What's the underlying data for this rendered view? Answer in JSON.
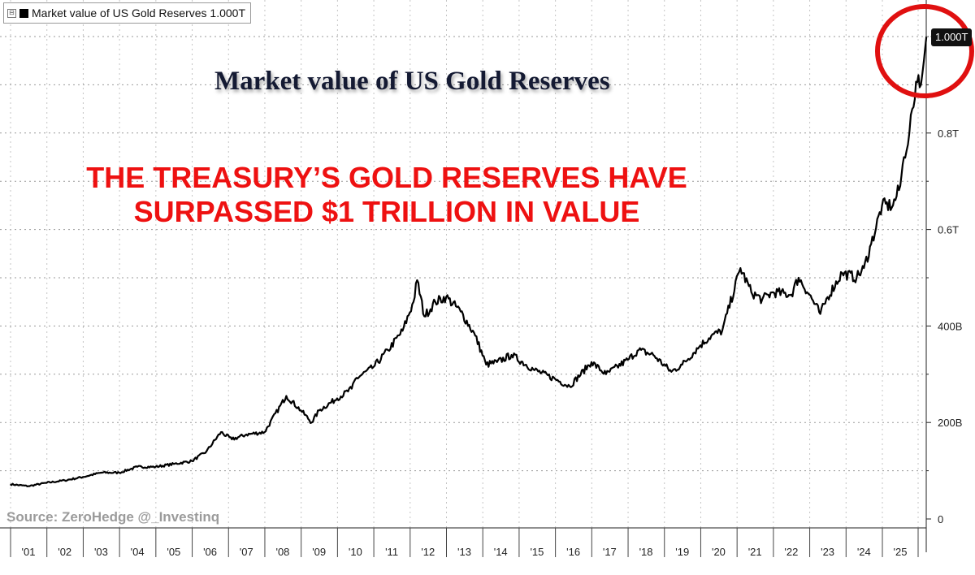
{
  "legend": {
    "toggle": "⊟",
    "label": "Market value of US Gold Reserves 1.000T"
  },
  "title": "Market value of US Gold Reserves",
  "annotation": {
    "line1": "THE TREASURY’S GOLD RESERVES HAVE",
    "line2": "SURPASSED $1 TRILLION IN VALUE"
  },
  "source": "Source: ZeroHedge  @_Investinq",
  "last_value_label": "1.000T",
  "colors": {
    "line": "#000000",
    "annotation": "#ee1111",
    "circle": "#e01010",
    "title": "#141a33",
    "grid": "#9a9a9a"
  },
  "chart_data": {
    "type": "line",
    "title": "Market value of US Gold Reserves",
    "xlabel": "",
    "ylabel": "",
    "xlim": [
      2000.5,
      2025.75
    ],
    "ylim": [
      0,
      1050
    ],
    "y_unit": "billion USD",
    "x_tick_values": [
      2001,
      2002,
      2003,
      2004,
      2005,
      2006,
      2007,
      2008,
      2009,
      2010,
      2011,
      2012,
      2013,
      2014,
      2015,
      2016,
      2017,
      2018,
      2019,
      2020,
      2021,
      2022,
      2023,
      2024,
      2025
    ],
    "x_tick_labels": [
      "'01",
      "'02",
      "'03",
      "'04",
      "'05",
      "'06",
      "'07",
      "'08",
      "'09",
      "'10",
      "'11",
      "'12",
      "'13",
      "'14",
      "'15",
      "'16",
      "'17",
      "'18",
      "'19",
      "'20",
      "'21",
      "'22",
      "'23",
      "'24",
      "'25"
    ],
    "y_tick_values": [
      0,
      200,
      400,
      600,
      800
    ],
    "y_tick_labels": [
      "0",
      "200B",
      "400B",
      "0.6T",
      "0.8T"
    ],
    "series": [
      {
        "name": "Market value of US Gold Reserves",
        "x": [
          2000.5,
          2001.0,
          2001.5,
          2002.0,
          2002.5,
          2003.0,
          2003.5,
          2004.0,
          2004.5,
          2005.0,
          2005.5,
          2005.9,
          2006.3,
          2006.6,
          2007.0,
          2007.5,
          2008.1,
          2008.5,
          2008.8,
          2009.0,
          2009.5,
          2009.9,
          2010.0,
          2010.5,
          2010.9,
          2011.3,
          2011.6,
          2011.7,
          2011.9,
          2012.2,
          2012.5,
          2012.9,
          2013.3,
          2013.6,
          2013.9,
          2014.3,
          2014.9,
          2015.5,
          2015.9,
          2016.5,
          2016.9,
          2017.5,
          2017.8,
          2018.2,
          2018.7,
          2019.0,
          2019.5,
          2019.8,
          2020.1,
          2020.6,
          2020.9,
          2021.2,
          2021.5,
          2022.0,
          2022.2,
          2022.5,
          2022.8,
          2023.0,
          2023.4,
          2023.8,
          2024.0,
          2024.2,
          2024.5,
          2024.8,
          2025.0,
          2025.1,
          2025.25,
          2025.33,
          2025.4,
          2025.5,
          2025.57,
          2025.65,
          2025.72
        ],
        "values": [
          72,
          68,
          75,
          80,
          87,
          96,
          96,
          108,
          108,
          114,
          120,
          140,
          180,
          165,
          175,
          180,
          255,
          225,
          200,
          225,
          250,
          270,
          290,
          315,
          350,
          390,
          450,
          495,
          420,
          450,
          460,
          430,
          380,
          320,
          325,
          340,
          310,
          290,
          275,
          325,
          300,
          330,
          350,
          340,
          305,
          320,
          360,
          380,
          390,
          520,
          470,
          455,
          470,
          465,
          500,
          465,
          425,
          460,
          510,
          500,
          520,
          570,
          650,
          650,
          690,
          750,
          800,
          850,
          870,
          920,
          900,
          950,
          1000
        ]
      }
    ]
  }
}
